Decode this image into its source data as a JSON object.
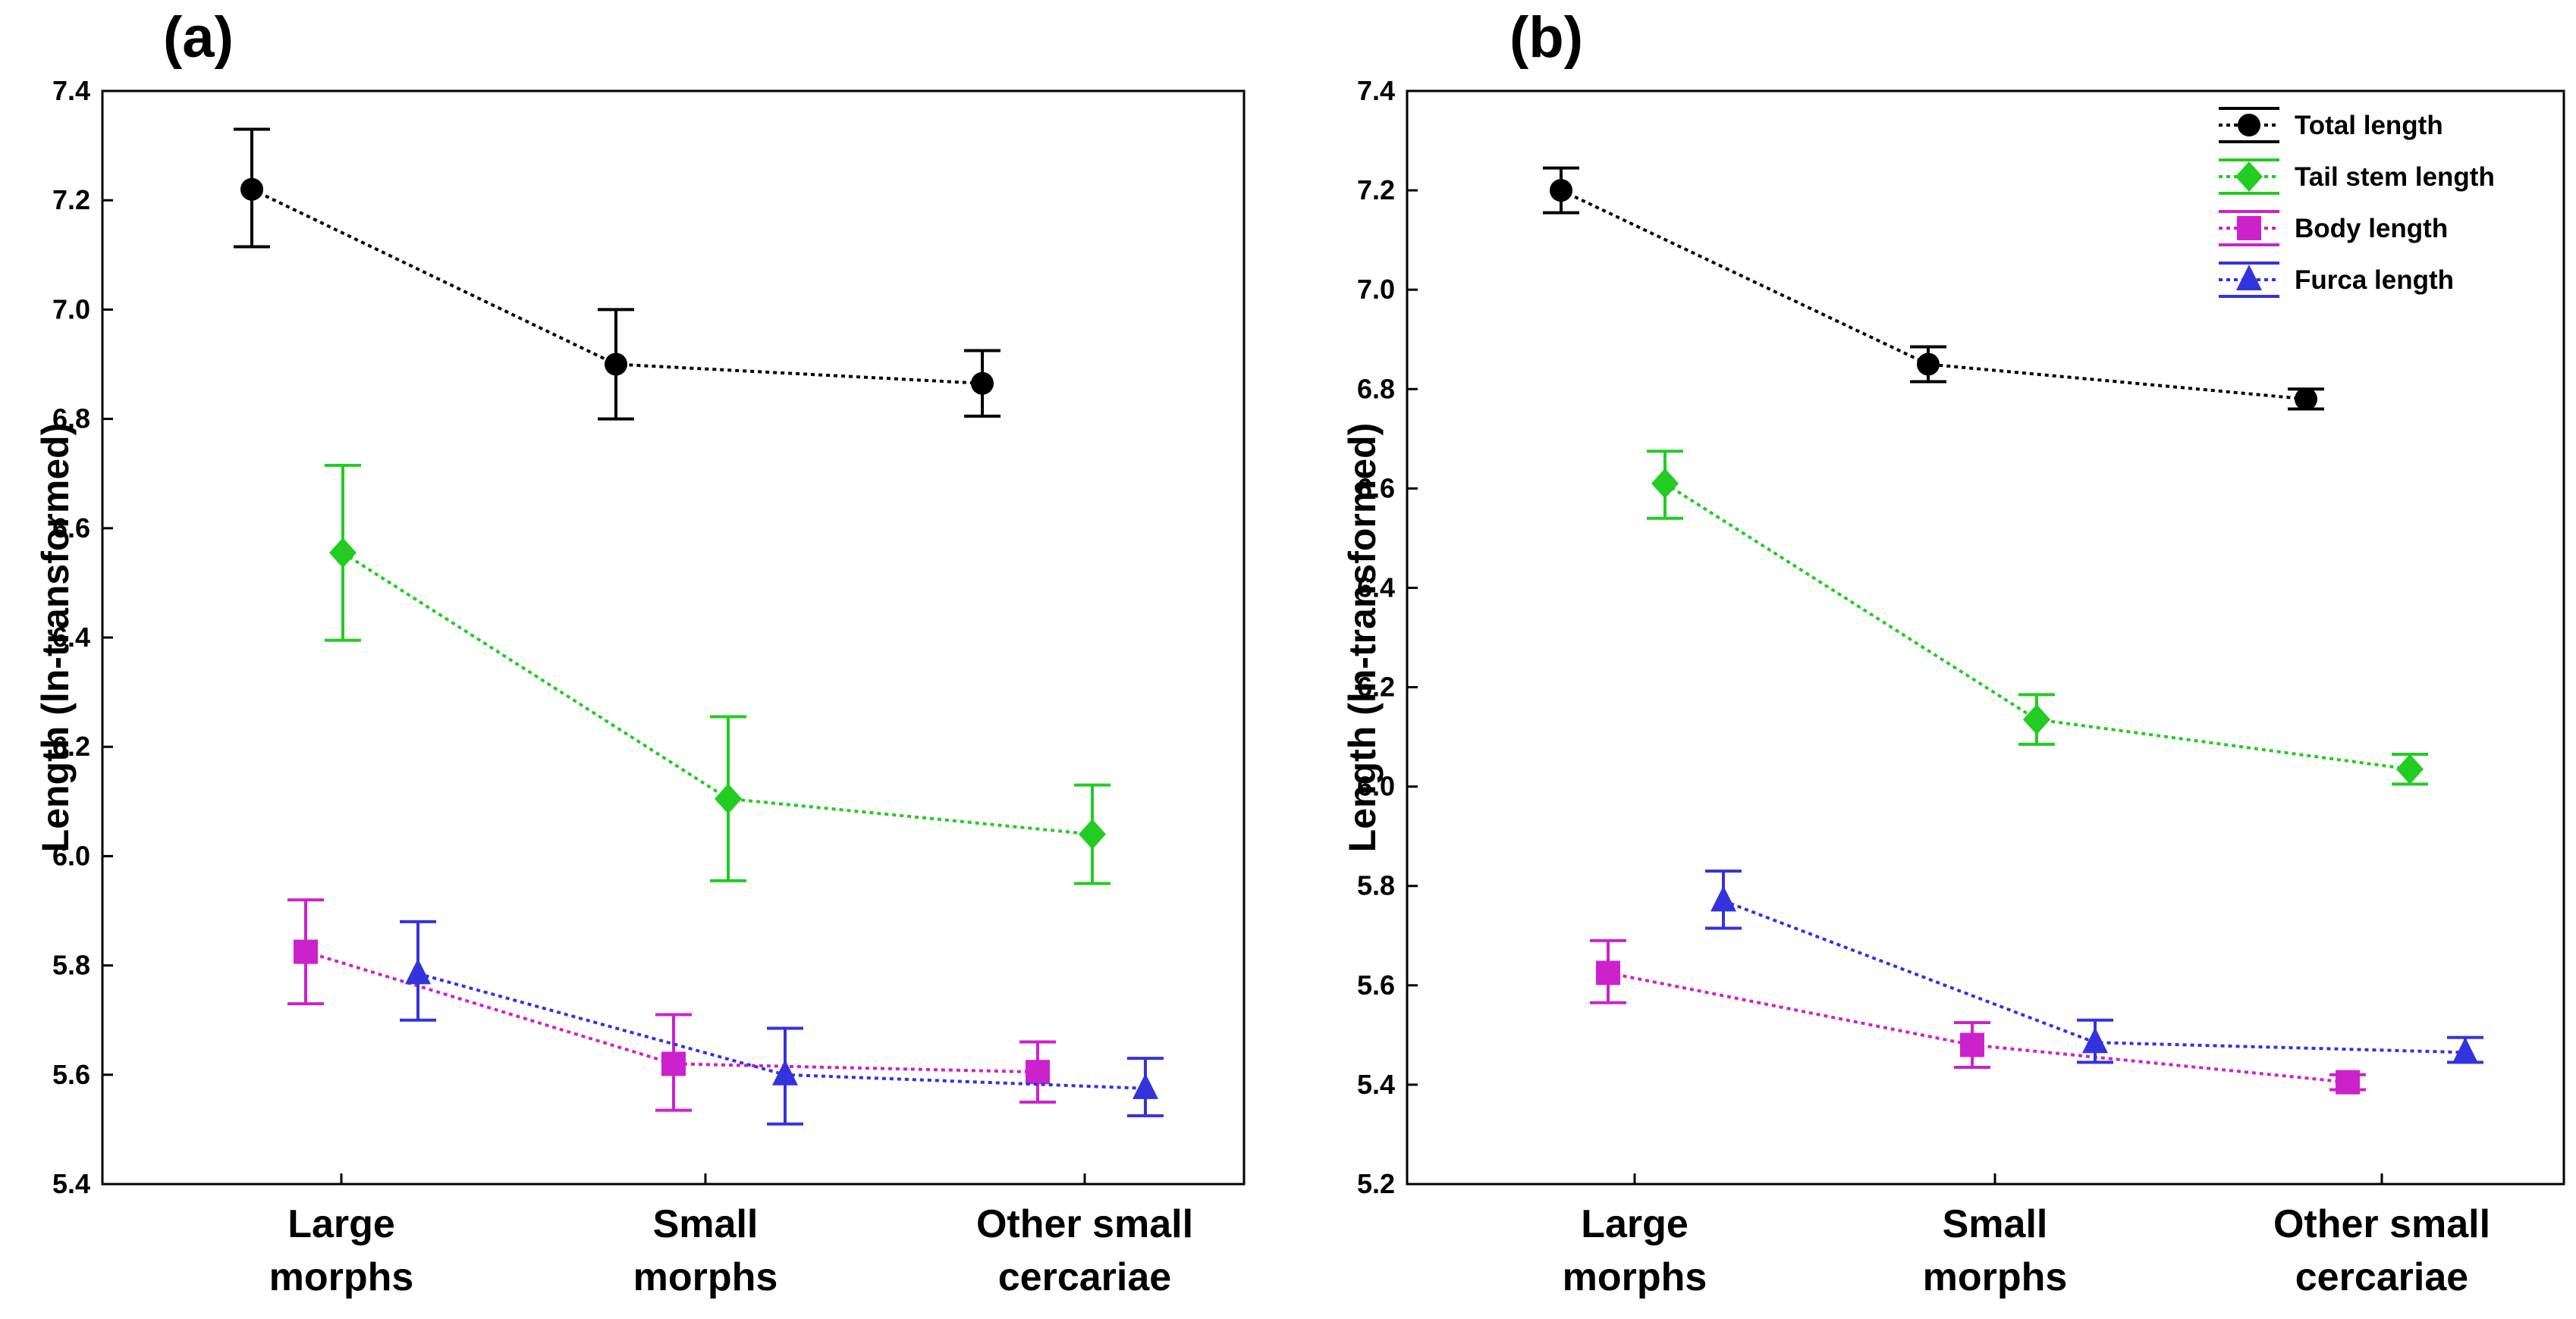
{
  "chart_data": [
    {
      "panel_label": "(a)",
      "type": "line",
      "ylabel": "Length (ln-transformed)",
      "ylim": [
        5.4,
        7.4
      ],
      "yticks": [
        "5.4",
        "5.6",
        "5.8",
        "6.0",
        "6.2",
        "6.4",
        "6.6",
        "6.8",
        "7.0",
        "7.2",
        "7.4"
      ],
      "categories": [
        {
          "line1": "Large",
          "line2": "morphs"
        },
        {
          "line1": "Small",
          "line2": "morphs"
        },
        {
          "line1": "Other small",
          "line2": "cercariae"
        }
      ],
      "series": [
        {
          "name": "Total length",
          "color": "#000000",
          "marker": "circle",
          "values": [
            7.22,
            6.9,
            6.865
          ],
          "lower": [
            7.115,
            6.8,
            6.805
          ],
          "upper": [
            7.33,
            7.0,
            6.925
          ]
        },
        {
          "name": "Tail stem length",
          "color": "#22cc22",
          "marker": "diamond",
          "values": [
            6.555,
            6.105,
            6.04
          ],
          "lower": [
            6.395,
            5.955,
            5.95
          ],
          "upper": [
            6.715,
            6.255,
            6.13
          ]
        },
        {
          "name": "Body length",
          "color": "#cc22cc",
          "marker": "square",
          "values": [
            5.825,
            5.62,
            5.605
          ],
          "lower": [
            5.73,
            5.535,
            5.55
          ],
          "upper": [
            5.92,
            5.71,
            5.66
          ]
        },
        {
          "name": "Furca length",
          "color": "#3333dd",
          "marker": "triangle",
          "values": [
            5.785,
            5.6,
            5.575
          ],
          "lower": [
            5.7,
            5.51,
            5.525
          ],
          "upper": [
            5.88,
            5.685,
            5.63
          ]
        }
      ]
    },
    {
      "panel_label": "(b)",
      "type": "line",
      "ylabel": "Length (ln-transformed)",
      "ylim": [
        5.2,
        7.4
      ],
      "yticks": [
        "5.2",
        "5.4",
        "5.6",
        "5.8",
        "6.0",
        "6.2",
        "6.4",
        "6.6",
        "6.8",
        "7.0",
        "7.2",
        "7.4"
      ],
      "categories": [
        {
          "line1": "Large",
          "line2": "morphs"
        },
        {
          "line1": "Small",
          "line2": "morphs"
        },
        {
          "line1": "Other small",
          "line2": "cercariae"
        }
      ],
      "legend_position": "top-right",
      "series": [
        {
          "name": "Total length",
          "color": "#000000",
          "marker": "circle",
          "values": [
            7.2,
            6.85,
            6.78
          ],
          "lower": [
            7.155,
            6.815,
            6.76
          ],
          "upper": [
            7.245,
            6.885,
            6.8
          ]
        },
        {
          "name": "Tail stem length",
          "color": "#22cc22",
          "marker": "diamond",
          "values": [
            6.61,
            6.135,
            6.035
          ],
          "lower": [
            6.54,
            6.085,
            6.005
          ],
          "upper": [
            6.675,
            6.185,
            6.065
          ]
        },
        {
          "name": "Body length",
          "color": "#cc22cc",
          "marker": "square",
          "values": [
            5.625,
            5.48,
            5.405
          ],
          "lower": [
            5.565,
            5.435,
            5.39
          ],
          "upper": [
            5.69,
            5.525,
            5.42
          ]
        },
        {
          "name": "Furca length",
          "color": "#3333dd",
          "marker": "triangle",
          "values": [
            5.77,
            5.485,
            5.465
          ],
          "lower": [
            5.715,
            5.445,
            5.445
          ],
          "upper": [
            5.83,
            5.53,
            5.495
          ]
        }
      ]
    }
  ]
}
